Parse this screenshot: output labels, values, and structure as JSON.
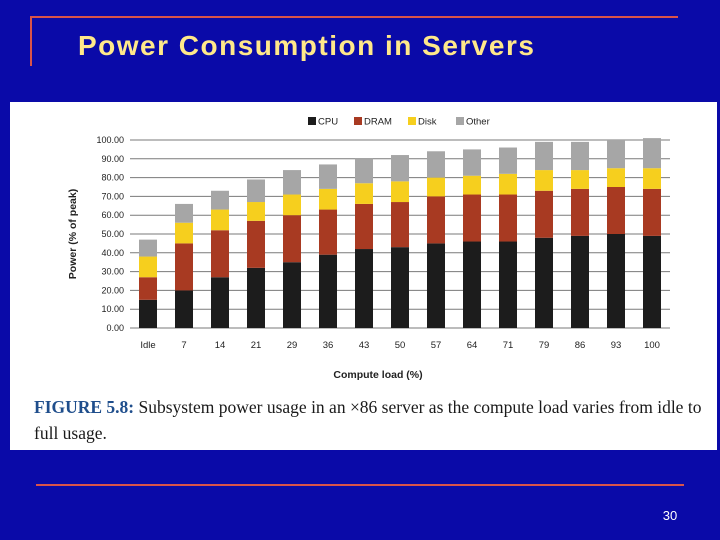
{
  "slide": {
    "title": "Power Consumption in Servers",
    "page_number": "30",
    "caption_label": "FIGURE 5.8:",
    "caption_text": " Subsystem power usage in an ×86 server as the compute load varies from idle to full usage."
  },
  "colors": {
    "background": "#0a0aa8",
    "title": "#ffe88a",
    "rule": "#d9544a",
    "cpu": "#1c1c1c",
    "dram": "#a83a22",
    "disk": "#f6cf1e",
    "other": "#a6a6a6"
  },
  "chart_data": {
    "type": "bar",
    "stacked": true,
    "xlabel": "Compute load (%)",
    "ylabel": "Power (% of peak)",
    "ylim": [
      0,
      100
    ],
    "yticks": [
      "0.00",
      "10.00",
      "20.00",
      "30.00",
      "40.00",
      "50.00",
      "60.00",
      "70.00",
      "80.00",
      "90.00",
      "100.00"
    ],
    "categories": [
      "Idle",
      "7",
      "14",
      "21",
      "29",
      "36",
      "43",
      "50",
      "57",
      "64",
      "71",
      "79",
      "86",
      "93",
      "100"
    ],
    "legend_position": "top",
    "series": [
      {
        "name": "CPU",
        "color_key": "cpu",
        "values": [
          15,
          20,
          27,
          32,
          35,
          39,
          42,
          43,
          45,
          46,
          46,
          48,
          49,
          50,
          49
        ]
      },
      {
        "name": "DRAM",
        "color_key": "dram",
        "values": [
          12,
          25,
          25,
          25,
          25,
          24,
          24,
          24,
          25,
          25,
          25,
          25,
          25,
          25,
          25
        ]
      },
      {
        "name": "Disk",
        "color_key": "disk",
        "values": [
          11,
          11,
          11,
          10,
          11,
          11,
          11,
          11,
          10,
          10,
          11,
          11,
          10,
          10,
          11
        ]
      },
      {
        "name": "Other",
        "color_key": "other",
        "values": [
          9,
          10,
          10,
          12,
          13,
          13,
          13,
          14,
          14,
          14,
          14,
          15,
          15,
          15,
          16
        ]
      }
    ]
  }
}
